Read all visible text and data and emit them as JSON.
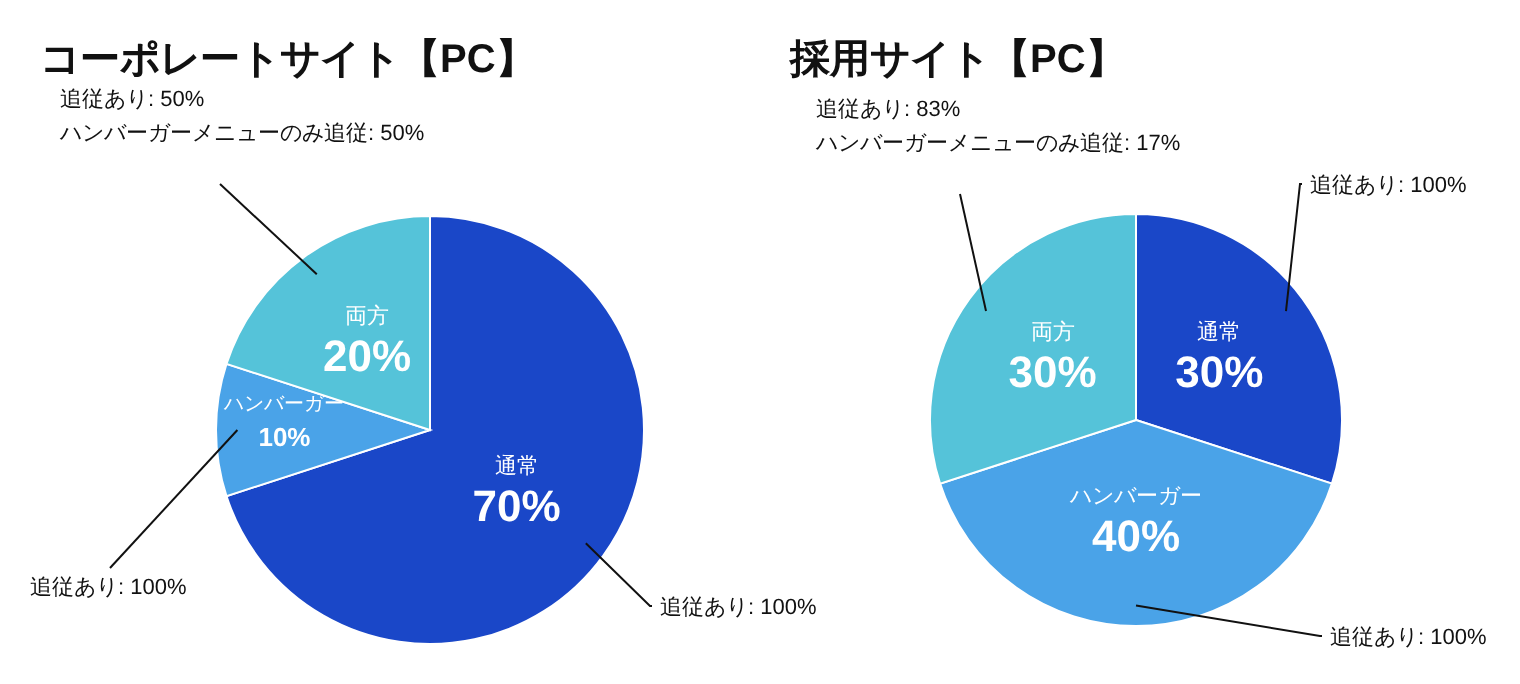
{
  "chart_data": [
    {
      "type": "pie",
      "title": "コーポレートサイト【PC】",
      "categories": [
        "通常",
        "ハンバーガー",
        "両方"
      ],
      "values": [
        70,
        10,
        20
      ],
      "value_labels": [
        "70%",
        "10%",
        "20%"
      ],
      "colors": [
        "#1a47c8",
        "#4aa3e8",
        "#55c3d9"
      ],
      "annotations": [
        "追従あり: 100%",
        "追従あり: 100%",
        "追従あり: 50%\nハンバーガーメニューのみ追従: 50%"
      ]
    },
    {
      "type": "pie",
      "title": "採用サイト【PC】",
      "categories": [
        "通常",
        "ハンバーガー",
        "両方"
      ],
      "values": [
        30,
        40,
        30
      ],
      "value_labels": [
        "30%",
        "40%",
        "30%"
      ],
      "colors": [
        "#1a47c8",
        "#4aa3e8",
        "#55c3d9"
      ],
      "annotations": [
        "追従あり: 100%",
        "追従あり: 100%",
        "追従あり: 83%\nハンバーガーメニューのみ追従: 17%"
      ]
    }
  ]
}
